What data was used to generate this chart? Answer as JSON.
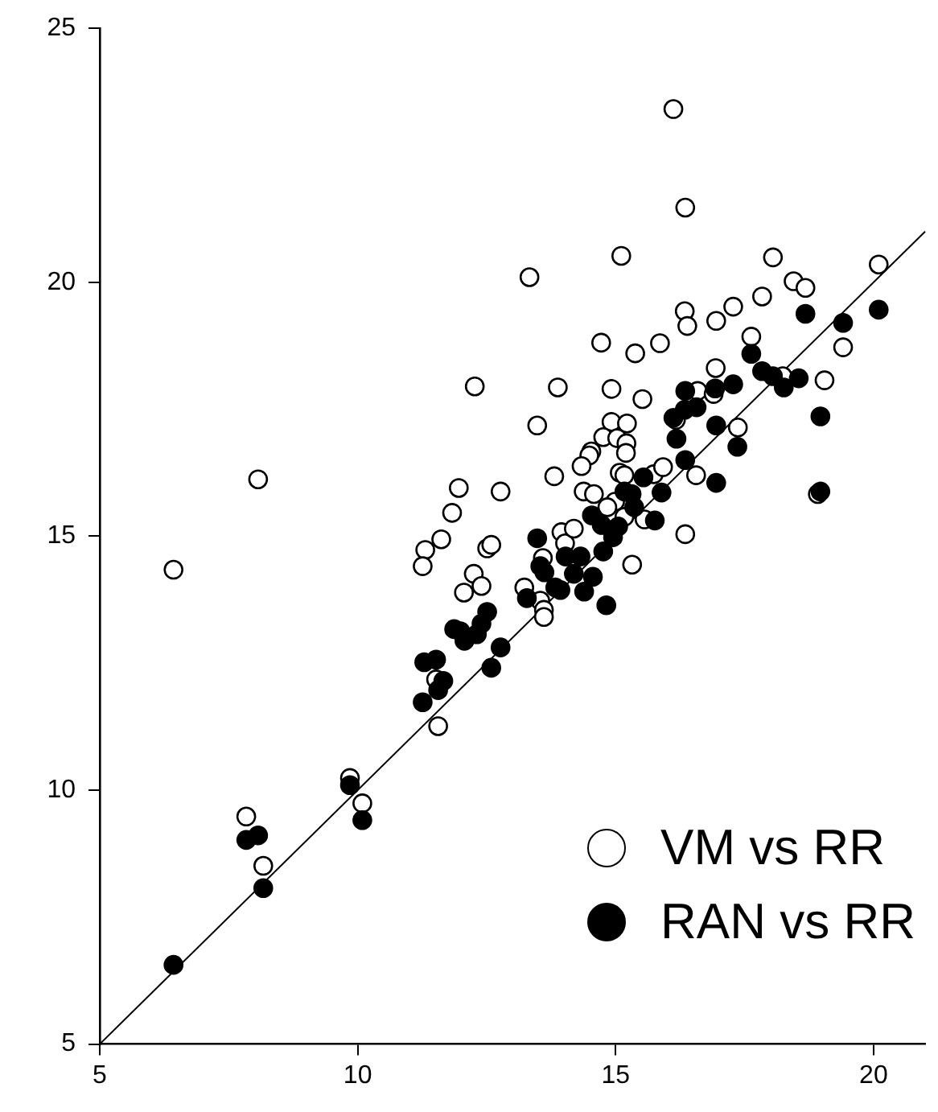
{
  "chart_data": {
    "type": "scatter",
    "xlim": [
      5,
      21
    ],
    "xticks": [
      5,
      10,
      15,
      20
    ],
    "ylim": [
      5,
      25
    ],
    "yticks": [
      5,
      10,
      15,
      20,
      25
    ],
    "grid": false,
    "legend": "bottom right",
    "marker": "circle",
    "series": [
      {
        "name": "VM vs RR",
        "color": "#ffffff",
        "x": [
          7.84,
          8.17,
          9.85,
          10.09,
          11.52,
          11.56,
          11.96,
          12.77,
          11.83,
          11.62,
          11.31,
          11.26,
          12.51,
          12.59,
          12.25,
          12.4,
          12.06,
          13.59,
          13.23,
          13.54,
          13.61,
          13.61,
          13.95,
          14.02,
          14.19,
          15.32,
          16.35,
          16.12,
          16.35,
          15.11,
          13.33,
          18.05,
          20.1,
          18.45,
          18.68,
          16.34,
          16.39,
          16.95,
          17.28,
          17.84,
          19.41,
          17.63,
          14.72,
          15.38,
          15.86,
          13.88,
          14.92,
          15.52,
          16.94,
          18.24,
          19.05,
          16.59,
          16.9,
          16.17,
          17.37,
          13.48,
          14.92,
          15.22,
          14.76,
          15.03,
          15.21,
          15.2,
          14.53,
          14.49,
          14.34,
          16.56,
          13.81,
          15.08,
          15.17,
          15.74,
          15.92,
          14.38,
          14.58,
          14.99,
          14.84,
          15.17,
          15.56,
          18.92,
          12.27,
          8.07,
          6.43
        ],
        "values": [
          9.48,
          8.51,
          10.24,
          9.74,
          12.18,
          11.26,
          15.95,
          15.88,
          15.46,
          14.94,
          14.73,
          14.41,
          14.76,
          14.83,
          14.26,
          14.02,
          13.89,
          14.57,
          13.99,
          13.73,
          13.55,
          13.41,
          15.08,
          14.86,
          15.15,
          14.44,
          15.04,
          23.41,
          21.47,
          20.52,
          20.1,
          20.49,
          20.35,
          20.02,
          19.89,
          19.43,
          19.14,
          19.24,
          19.52,
          19.72,
          18.72,
          18.93,
          18.81,
          18.6,
          18.8,
          17.93,
          17.9,
          17.7,
          18.31,
          18.15,
          18.07,
          17.86,
          17.8,
          17.29,
          17.14,
          17.18,
          17.25,
          17.22,
          16.95,
          16.93,
          16.83,
          16.64,
          16.67,
          16.59,
          16.38,
          16.2,
          16.18,
          16.25,
          16.2,
          16.22,
          16.36,
          15.88,
          15.83,
          15.68,
          15.57,
          15.38,
          15.33,
          15.83,
          17.95,
          16.12,
          14.34
        ]
      },
      {
        "name": "RAN vs RR",
        "color": "#000000",
        "x": [
          6.43,
          7.84,
          8.07,
          8.17,
          9.85,
          10.09,
          11.29,
          11.52,
          11.66,
          11.56,
          11.26,
          12.07,
          12.51,
          12.4,
          11.87,
          11.99,
          12.31,
          12.77,
          12.59,
          13.48,
          13.54,
          13.62,
          13.28,
          13.83,
          13.93,
          14.03,
          14.32,
          14.19,
          14.56,
          14.39,
          14.82,
          14.76,
          14.54,
          14.73,
          18.68,
          19.41,
          20.1,
          17.63,
          17.84,
          18.05,
          18.26,
          18.55,
          17.28,
          16.35,
          16.93,
          16.34,
          16.57,
          16.12,
          16.95,
          17.36,
          18.97,
          16.18,
          16.35,
          16.95,
          15.54,
          15.17,
          15.31,
          15.36,
          15.89,
          15.05,
          14.95,
          15.76,
          18.97
        ],
        "values": [
          6.56,
          9.02,
          9.11,
          8.07,
          10.1,
          9.41,
          12.52,
          12.57,
          12.15,
          11.97,
          11.73,
          12.94,
          13.51,
          13.28,
          13.17,
          13.13,
          13.07,
          12.81,
          12.41,
          14.96,
          14.41,
          14.29,
          13.78,
          13.99,
          13.94,
          14.6,
          14.6,
          14.26,
          14.2,
          13.91,
          13.64,
          14.7,
          15.41,
          15.22,
          19.38,
          19.2,
          19.46,
          18.59,
          18.25,
          18.15,
          17.93,
          18.11,
          17.99,
          17.86,
          17.91,
          17.49,
          17.54,
          17.33,
          17.18,
          16.76,
          17.36,
          16.92,
          16.5,
          16.05,
          16.16,
          15.88,
          15.83,
          15.57,
          15.86,
          15.19,
          14.98,
          15.31,
          15.88
        ]
      },
      {
        "type": "line",
        "color": "#000000",
        "marker": "none",
        "x": [
          5,
          21
        ],
        "values": [
          5,
          21
        ]
      }
    ]
  }
}
